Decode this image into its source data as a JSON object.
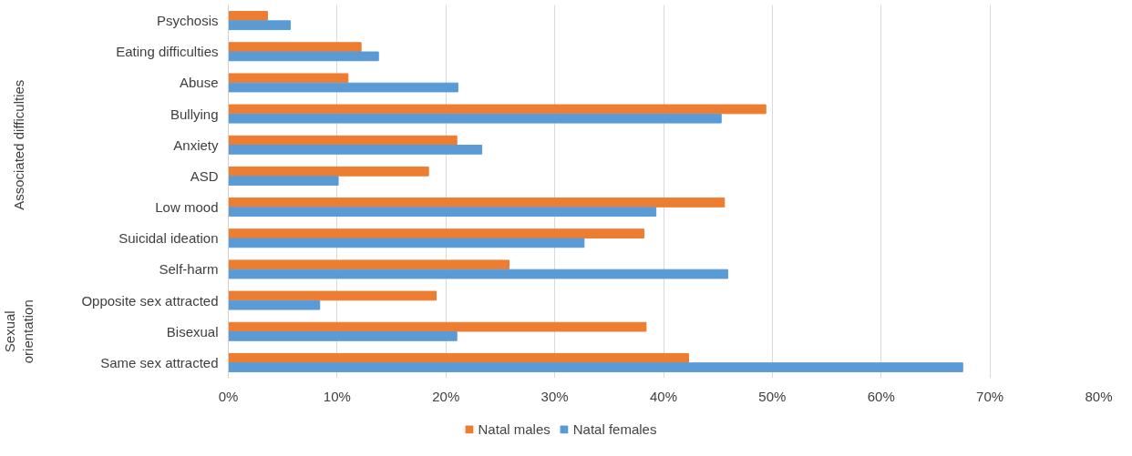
{
  "chart_data": {
    "type": "bar",
    "orientation": "horizontal",
    "categories": [
      "Psychosis",
      "Eating difficulties",
      "Abuse",
      "Bullying",
      "Anxiety",
      "ASD",
      "Low mood",
      "Suicidal ideation",
      "Self-harm",
      "Opposite sex attracted",
      "Bisexual",
      "Same sex attracted"
    ],
    "series": [
      {
        "name": "Natal males",
        "color": "#ed7d31",
        "values": [
          3.6,
          12.2,
          11.0,
          49.4,
          21.0,
          18.4,
          45.6,
          38.2,
          25.8,
          19.1,
          38.4,
          42.3
        ]
      },
      {
        "name": "Natal females",
        "color": "#5b9bd5",
        "values": [
          5.7,
          13.8,
          21.1,
          45.3,
          23.3,
          10.1,
          39.3,
          32.7,
          45.9,
          8.4,
          21.0,
          67.5
        ]
      }
    ],
    "xlim": [
      0,
      80
    ],
    "xticks": [
      {
        "value": 0,
        "label": "0%"
      },
      {
        "value": 10,
        "label": "10%"
      },
      {
        "value": 20,
        "label": "20%"
      },
      {
        "value": 30,
        "label": "30%"
      },
      {
        "value": 40,
        "label": "40%"
      },
      {
        "value": 50,
        "label": "50%"
      },
      {
        "value": 60,
        "label": "60%"
      },
      {
        "value": 70,
        "label": "70%"
      },
      {
        "value": 80,
        "label": "80%"
      }
    ],
    "annotations": [
      "Associated difficulties",
      "Sexual\norientation"
    ],
    "grid": "x",
    "legend": "bottom"
  }
}
